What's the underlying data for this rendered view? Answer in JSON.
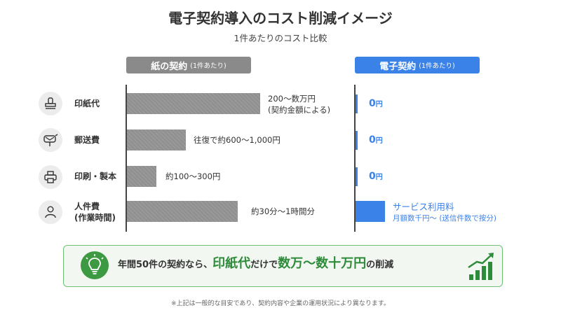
{
  "title": "電子契約導入のコスト削減イメージ",
  "subtitle": "1件あたりのコスト比較",
  "headers": {
    "paper": {
      "label": "紙の契約",
      "note": "(1件あたり)"
    },
    "electronic": {
      "label": "電子契約",
      "note": "(1件あたり)"
    }
  },
  "rows": [
    {
      "label": "印紙代",
      "icon": "stamp-icon",
      "paper_label_1": "200〜数万円",
      "paper_label_2": "(契約金額による)",
      "e_value": "0",
      "e_unit": "円"
    },
    {
      "label": "郵送費",
      "icon": "mailbox-icon",
      "paper_label_1": "往復で約600〜1,000円",
      "e_value": "0",
      "e_unit": "円"
    },
    {
      "label": "印刷・製本",
      "icon": "printer-icon",
      "paper_label_1": "約100〜300円",
      "e_value": "0",
      "e_unit": "円"
    },
    {
      "label": "人件費",
      "label_2": "(作業時間)",
      "icon": "person-icon",
      "paper_label_1": "約30分〜1時間分",
      "e_label_1": "サービス利用料",
      "e_label_2": "月額数千円〜 (送信件数で按分)"
    }
  ],
  "chart_data": {
    "type": "bar",
    "title": "電子契約導入のコスト削減イメージ",
    "subtitle": "1件あたりのコスト比較",
    "categories": [
      "印紙代",
      "郵送費",
      "印刷・製本",
      "人件費(作業時間)"
    ],
    "series": [
      {
        "name": "紙の契約",
        "values": [
          1.0,
          0.44,
          0.22,
          0.83
        ]
      },
      {
        "name": "電子契約",
        "values": [
          0.01,
          0.01,
          0.01,
          0.22
        ]
      }
    ],
    "grid": false
  },
  "banner": {
    "part1": "年間50件の契約なら、",
    "part2": "印紙代",
    "part3": "だけで",
    "part4": "数万〜数十万円",
    "part5": "の削減"
  },
  "footnote": "※上記は一般的な目安であり、契約内容や企業の運用状況により異なります。",
  "colors": {
    "paper": "#8a8a8a",
    "electronic": "#3b82e8",
    "accent_green": "#2e8b3a"
  }
}
